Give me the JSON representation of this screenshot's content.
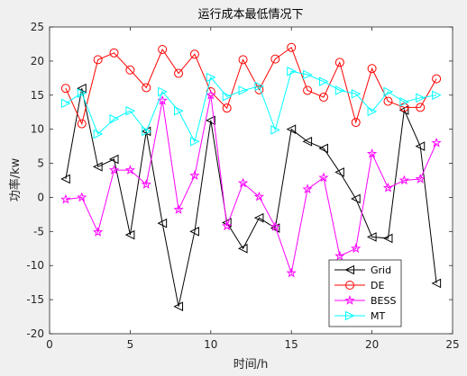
{
  "chart_data": {
    "type": "line",
    "title": "运行成本最低情况下",
    "xlabel": "时间/h",
    "ylabel": "功率/kw",
    "xlim": [
      0,
      25
    ],
    "ylim": [
      -20,
      25
    ],
    "xticks": [
      0,
      5,
      10,
      15,
      20,
      25
    ],
    "yticks": [
      -20,
      -15,
      -10,
      -5,
      0,
      5,
      10,
      15,
      20,
      25
    ],
    "grid": false,
    "legend_position": "bottom-right",
    "x": [
      1,
      2,
      3,
      4,
      5,
      6,
      7,
      8,
      9,
      10,
      11,
      12,
      13,
      14,
      15,
      16,
      17,
      18,
      19,
      20,
      21,
      22,
      23,
      24
    ],
    "series": [
      {
        "name": "Grid",
        "color": "#000000",
        "marker": "triangle-left",
        "values": [
          2.7,
          16.0,
          4.5,
          5.6,
          -5.5,
          9.7,
          -3.8,
          -16.0,
          -5.0,
          11.3,
          -3.7,
          -7.5,
          -3.0,
          -4.5,
          10.0,
          8.2,
          7.2,
          3.7,
          -0.2,
          -5.8,
          -6.0,
          12.8,
          7.5,
          -12.6
        ]
      },
      {
        "name": "DE",
        "color": "#ff0000",
        "marker": "circle",
        "values": [
          16.0,
          10.8,
          20.2,
          21.2,
          18.7,
          16.1,
          21.7,
          18.2,
          21.0,
          15.5,
          13.1,
          20.2,
          15.8,
          20.3,
          22.0,
          15.7,
          14.7,
          19.8,
          11.0,
          18.9,
          14.1,
          13.2,
          13.2,
          17.4
        ]
      },
      {
        "name": "BESS",
        "color": "#ff00ff",
        "marker": "star",
        "values": [
          -0.3,
          0.0,
          -5.1,
          4.0,
          4.0,
          1.9,
          14.2,
          -1.8,
          3.2,
          15.0,
          -4.2,
          2.1,
          0.1,
          -4.3,
          -11.1,
          1.2,
          2.9,
          -8.6,
          -7.5,
          6.4,
          1.4,
          2.5,
          2.7,
          8.0
        ]
      },
      {
        "name": "MT",
        "color": "#00ffff",
        "marker": "triangle-right",
        "values": [
          13.8,
          15.3,
          9.3,
          11.5,
          12.7,
          9.7,
          15.5,
          12.7,
          8.2,
          17.6,
          14.8,
          15.7,
          16.3,
          9.9,
          18.5,
          18.0,
          17.0,
          15.7,
          15.2,
          12.6,
          15.5,
          14.0,
          14.6,
          15.0
        ]
      }
    ]
  }
}
